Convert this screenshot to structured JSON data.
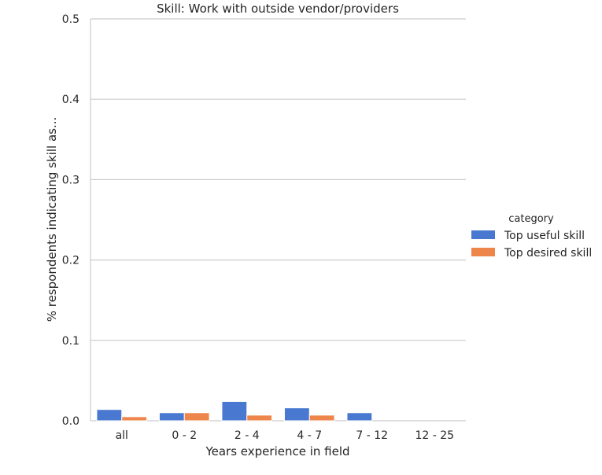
{
  "chart_data": {
    "type": "bar",
    "title": "Skill: Work with outside vendor/providers",
    "xlabel": "Years experience in field",
    "ylabel": "% respondents indicating skill as...",
    "categories": [
      "all",
      "0 - 2",
      "2 - 4",
      "4 - 7",
      "7 - 12",
      "12 - 25"
    ],
    "series": [
      {
        "name": "Top useful skill",
        "color": "#4878d0",
        "values": [
          0.014,
          0.01,
          0.024,
          0.016,
          0.01,
          0.0
        ]
      },
      {
        "name": "Top desired skill",
        "color": "#ee854a",
        "values": [
          0.005,
          0.01,
          0.007,
          0.007,
          0.0,
          0.0
        ]
      }
    ],
    "ylim": [
      0,
      0.5
    ],
    "yticks": [
      0.0,
      0.1,
      0.2,
      0.3,
      0.4,
      0.5
    ],
    "ytick_labels": [
      "0.0",
      "0.1",
      "0.2",
      "0.3",
      "0.4",
      "0.5"
    ],
    "grid": true,
    "legend": {
      "title": "category",
      "placement": "right"
    }
  }
}
